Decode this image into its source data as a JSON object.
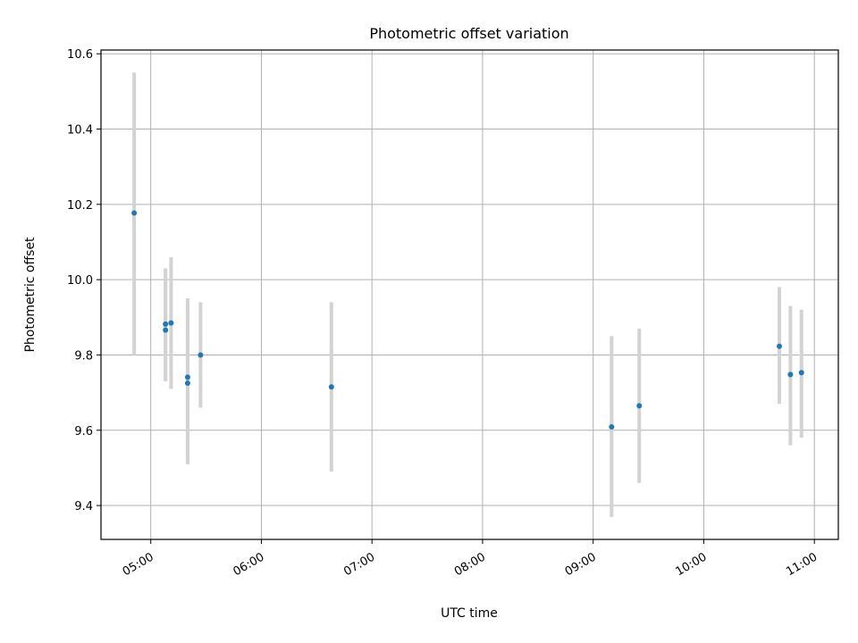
{
  "chart_data": {
    "type": "scatter",
    "title": "Photometric offset variation",
    "xlabel": "UTC time",
    "ylabel": "Photometric offset",
    "x_ticks": [
      "05:00",
      "06:00",
      "07:00",
      "08:00",
      "09:00",
      "10:00",
      "11:00"
    ],
    "y_ticks": [
      "9.4",
      "9.6",
      "9.8",
      "10.0",
      "10.2",
      "10.4",
      "10.6"
    ],
    "xlim": [
      "04:33",
      "11:13"
    ],
    "ylim": [
      9.31,
      10.61
    ],
    "grid": true,
    "colors": {
      "points": "#1f77b4",
      "error_bars": "#d3d3d3",
      "grid": "#b0b0b0"
    },
    "points": [
      {
        "x": "04:51",
        "y": 10.177,
        "y_low": 9.8,
        "y_high": 10.55
      },
      {
        "x": "05:08",
        "y": 9.866,
        "y_low": 9.73,
        "y_high": 10.03
      },
      {
        "x": "05:08",
        "y": 9.882,
        "y_low": 9.73,
        "y_high": 10.03
      },
      {
        "x": "05:11",
        "y": 9.885,
        "y_low": 9.71,
        "y_high": 10.06
      },
      {
        "x": "05:20",
        "y": 9.741,
        "y_low": 9.51,
        "y_high": 9.95
      },
      {
        "x": "05:20",
        "y": 9.725,
        "y_low": 9.51,
        "y_high": 9.95
      },
      {
        "x": "05:27",
        "y": 9.8,
        "y_low": 9.66,
        "y_high": 9.94
      },
      {
        "x": "06:38",
        "y": 9.715,
        "y_low": 9.49,
        "y_high": 9.94
      },
      {
        "x": "09:10",
        "y": 9.609,
        "y_low": 9.37,
        "y_high": 9.85
      },
      {
        "x": "09:25",
        "y": 9.665,
        "y_low": 9.46,
        "y_high": 9.87
      },
      {
        "x": "10:41",
        "y": 9.823,
        "y_low": 9.67,
        "y_high": 9.98
      },
      {
        "x": "10:47",
        "y": 9.748,
        "y_low": 9.56,
        "y_high": 9.93
      },
      {
        "x": "10:53",
        "y": 9.753,
        "y_low": 9.58,
        "y_high": 9.92
      }
    ]
  }
}
